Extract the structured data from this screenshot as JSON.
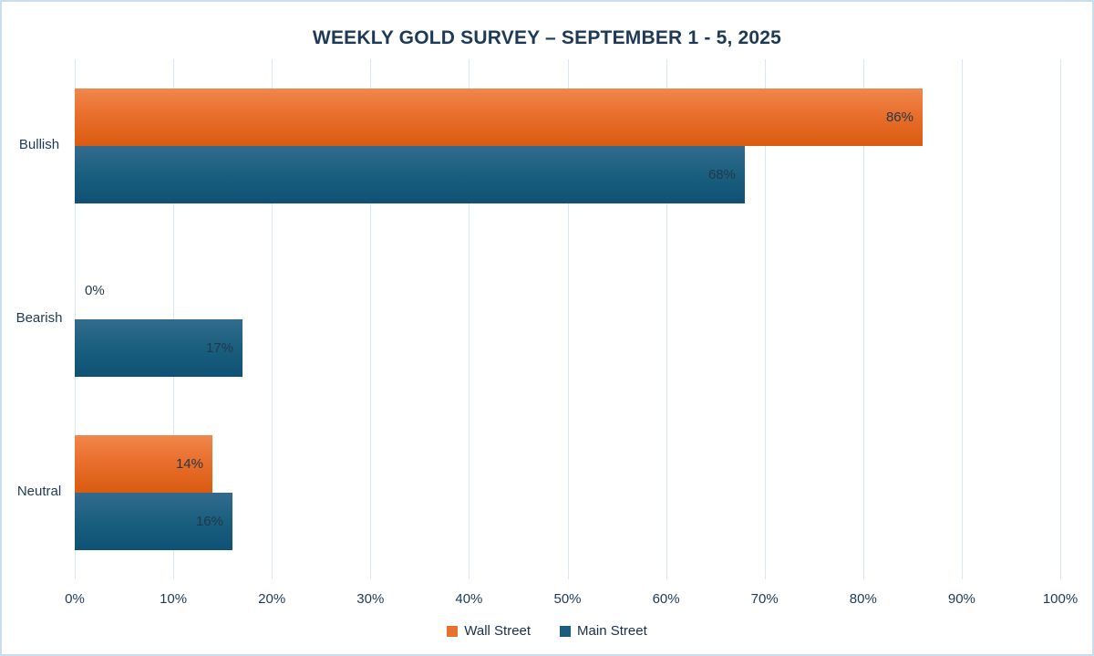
{
  "chart_data": {
    "type": "bar",
    "orientation": "horizontal",
    "title": "WEEKLY GOLD SURVEY – SEPTEMBER 1  - 5, 2025",
    "categories": [
      "Bullish",
      "Bearish",
      "Neutral"
    ],
    "series": [
      {
        "name": "Wall Street",
        "values": [
          86,
          0,
          14
        ],
        "color_top": "#f1874d",
        "color_bottom": "#da5b11",
        "legend_color": "#e9712f"
      },
      {
        "name": "Main Street",
        "values": [
          68,
          17,
          16
        ],
        "color_top": "#336b8d",
        "color_bottom": "#0e5174",
        "legend_color": "#1d5d80"
      }
    ],
    "data_labels": [
      "86%",
      "0%",
      "14%",
      "68%",
      "17%",
      "16%"
    ],
    "value_suffix": "%",
    "xlim": [
      0,
      100
    ],
    "xticks": [
      "0%",
      "10%",
      "20%",
      "30%",
      "40%",
      "50%",
      "60%",
      "70%",
      "80%",
      "90%",
      "100%"
    ],
    "grid": "vertical",
    "legend_position": "bottom",
    "data_label_position": "inside-end"
  },
  "style": {
    "text_color": "#1c3a57",
    "data_label_color": "#22384a",
    "gridline_color": "#d9e6f4",
    "page_border_color": "#c9dcf0",
    "background": "#ffffff"
  }
}
